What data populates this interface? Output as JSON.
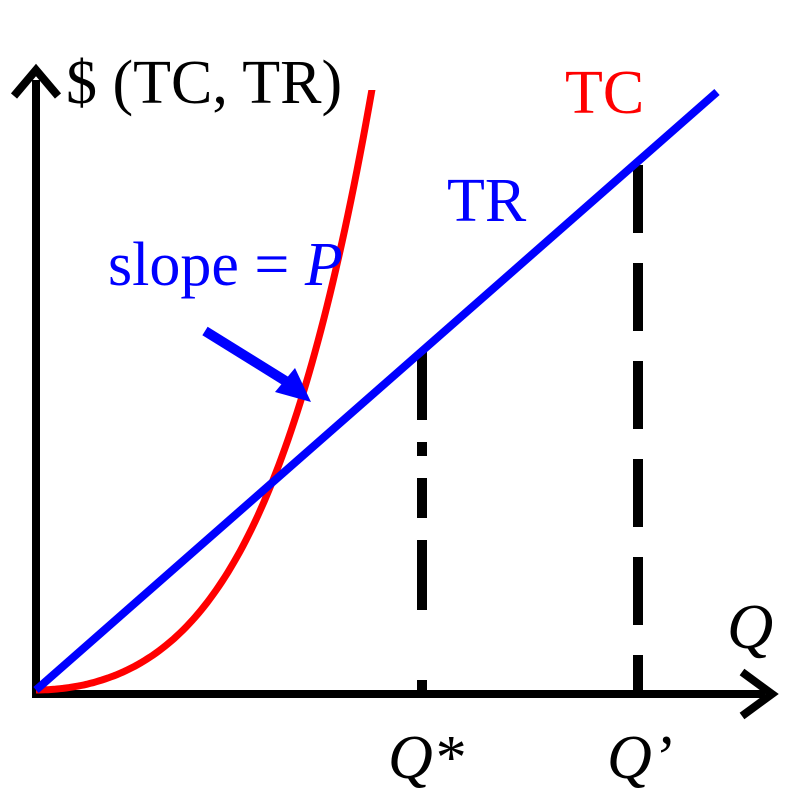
{
  "y_axis_label": "$ (TC, TR)",
  "x_axis_label": "Q",
  "curves": {
    "tc": {
      "label": "TC",
      "color": "#ff0000"
    },
    "tr": {
      "label": "TR",
      "color": "#0000ff"
    }
  },
  "slope_annotation": {
    "text": "slope = ",
    "variable": "P",
    "color": "#0000ff"
  },
  "ticks": {
    "q_star": "Q*",
    "q_prime": "Q’"
  },
  "axis_color": "#000000"
}
